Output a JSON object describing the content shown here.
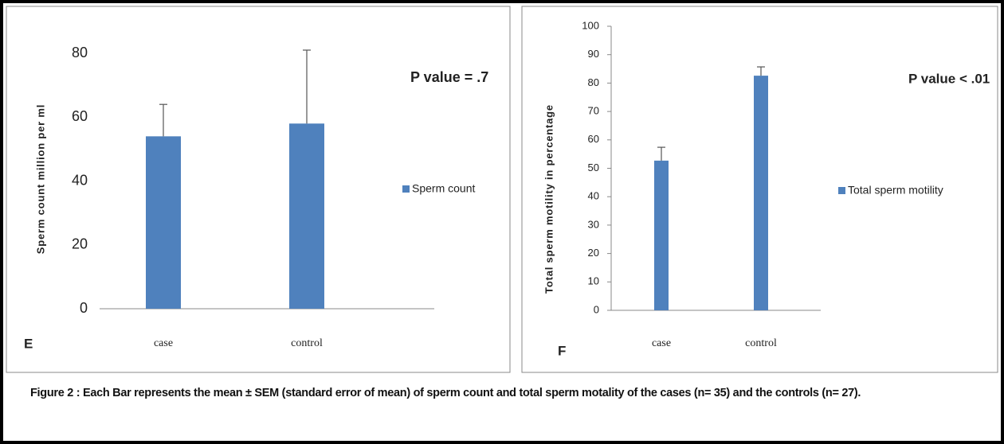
{
  "chart_data": [
    {
      "type": "bar",
      "panel": "E",
      "annotation": "P value = .7",
      "y_label": "Sperm count  million per ml",
      "categories": [
        "case",
        "control"
      ],
      "series": [
        {
          "name": "Sperm count",
          "color": "#4f81bd",
          "values": [
            54,
            58
          ],
          "errors": [
            10,
            23
          ]
        }
      ],
      "ylim": [
        0,
        80
      ],
      "yticks": [
        0,
        20,
        40,
        60,
        80
      ],
      "grid": false,
      "legend": "right"
    },
    {
      "type": "bar",
      "panel": "F",
      "annotation": "P value < .01",
      "y_label": "Total sperm motility in percentage",
      "categories": [
        "case",
        "control"
      ],
      "series": [
        {
          "name": "Total sperm motility",
          "color": "#4f81bd",
          "values": [
            52.7,
            82.6
          ],
          "errors": [
            4.7,
            3.1
          ]
        }
      ],
      "ylim": [
        0,
        100
      ],
      "yticks": [
        0,
        10,
        20,
        30,
        40,
        50,
        60,
        70,
        80,
        90,
        100
      ],
      "grid": false,
      "legend": "right"
    }
  ],
  "caption": "Figure 2 : Each Bar represents the mean ± SEM (standard error of mean) of sperm count and total sperm motality of the cases (n= 35) and the controls (n= 27)."
}
